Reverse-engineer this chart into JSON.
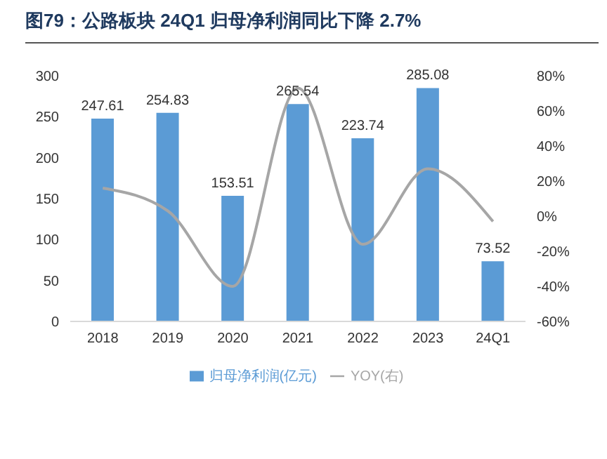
{
  "chart_data": {
    "type": "bar",
    "title": "图79：公路板块 24Q1 归母净利润同比下降 2.7%",
    "categories": [
      "2018",
      "2019",
      "2020",
      "2021",
      "2022",
      "2023",
      "24Q1"
    ],
    "series": [
      {
        "name": "归母净利润(亿元)",
        "color": "#5b9bd5",
        "values": [
          247.61,
          254.83,
          153.51,
          265.54,
          223.74,
          285.08,
          73.52
        ],
        "value_labels": [
          "247.61",
          "254.83",
          "153.51",
          "265.54",
          "223.74",
          "285.08",
          "73.52"
        ]
      },
      {
        "name": "YOY(右)",
        "type": "line",
        "axis": "y2",
        "color": "#a6a6a6",
        "values": [
          16,
          3,
          -40,
          73,
          -16,
          27,
          -3
        ]
      }
    ],
    "ylim": [
      0,
      300
    ],
    "yticks": [
      0,
      50,
      100,
      150,
      200,
      250,
      300
    ],
    "y2lim": [
      -60,
      80
    ],
    "y2ticks": [
      {
        "value": -60,
        "label": "-60%"
      },
      {
        "value": -40,
        "label": "-40%"
      },
      {
        "value": -20,
        "label": "-20%"
      },
      {
        "value": 0,
        "label": "0%"
      },
      {
        "value": 20,
        "label": "20%"
      },
      {
        "value": 40,
        "label": "40%"
      },
      {
        "value": 60,
        "label": "60%"
      },
      {
        "value": 80,
        "label": "80%"
      }
    ],
    "legend": "bottom",
    "marker": "none"
  }
}
